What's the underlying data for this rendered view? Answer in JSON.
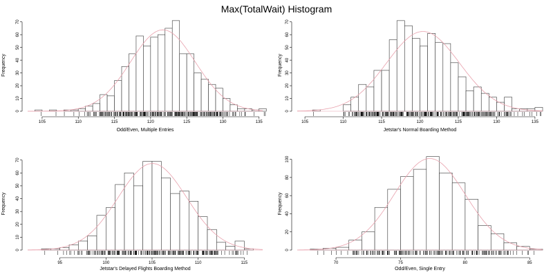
{
  "title": "Max(TotalWait) Histogram",
  "chart_data": [
    {
      "type": "bar",
      "subtype": "histogram",
      "xlabel": "Odd/Even, Multiple Entries",
      "ylabel": "Frequency",
      "xticks": [
        105,
        110,
        115,
        120,
        125,
        130,
        135
      ],
      "yticks": [
        0,
        10,
        20,
        30,
        40,
        50,
        60,
        70
      ],
      "xlim": [
        103,
        135.5
      ],
      "ylim": [
        0,
        72
      ],
      "bins_start": 104,
      "bin_width": 1,
      "values": [
        1,
        0,
        1,
        0,
        1,
        1,
        2,
        4,
        6,
        13,
        12,
        24,
        35,
        45,
        59,
        51,
        58,
        60,
        65,
        71,
        45,
        45,
        30,
        25,
        21,
        18,
        10,
        5,
        2,
        2,
        1,
        2
      ],
      "density_curve": "smoothed normal fit, pink",
      "rug": "data points marked along x-axis"
    },
    {
      "type": "bar",
      "subtype": "histogram",
      "xlabel": "Jetstar's Normal Boarding Method",
      "ylabel": "Frequency",
      "xticks": [
        105,
        110,
        115,
        120,
        125,
        130,
        135
      ],
      "yticks": [
        0,
        10,
        20,
        30,
        40,
        50,
        60,
        70
      ],
      "xlim": [
        104,
        136
      ],
      "ylim": [
        0,
        72
      ],
      "bins_start": 106,
      "bin_width": 1,
      "values": [
        1,
        0,
        0,
        0,
        5,
        11,
        21,
        19,
        32,
        32,
        56,
        71,
        67,
        57,
        51,
        61,
        54,
        53,
        38,
        27,
        16,
        19,
        14,
        11,
        7,
        11,
        2,
        2,
        2,
        3
      ],
      "density_curve": "smoothed normal fit, pink",
      "rug": "data points marked along x-axis"
    },
    {
      "type": "bar",
      "subtype": "histogram",
      "xlabel": "Jetstar's Delayed Flights Boarding Method",
      "ylabel": "Frequency",
      "xticks": [
        95,
        100,
        105,
        110,
        115
      ],
      "yticks": [
        0,
        10,
        20,
        30,
        40,
        50,
        60,
        70
      ],
      "xlim": [
        91.5,
        117
      ],
      "ylim": [
        0,
        72
      ],
      "bins_start": 93,
      "bin_width": 1,
      "values": [
        1,
        1,
        2,
        4,
        7,
        11,
        27,
        33,
        51,
        60,
        50,
        69,
        69,
        56,
        44,
        46,
        38,
        26,
        16,
        6,
        3,
        7,
        1
      ],
      "density_curve": "smoothed normal fit, pink",
      "rug": "data points marked along x-axis"
    },
    {
      "type": "bar",
      "subtype": "histogram",
      "xlabel": "Odd/Even, Single Entry",
      "ylabel": "Frequency",
      "xticks": [
        70,
        75,
        80,
        85
      ],
      "yticks": [
        0,
        20,
        40,
        60,
        80,
        100
      ],
      "xlim": [
        67,
        86
      ],
      "ylim": [
        0,
        102
      ],
      "bins_start": 68,
      "bin_width": 1,
      "values": [
        1,
        2,
        3,
        11,
        20,
        47,
        67,
        81,
        89,
        103,
        85,
        74,
        56,
        27,
        18,
        8,
        4,
        1
      ],
      "density_curve": "smoothed normal fit, pink",
      "rug": "data points marked along x-axis"
    }
  ],
  "colors": {
    "bar_fill": "#ffffff",
    "bar_stroke": "#333333",
    "density": "#e8a0ac",
    "axis": "#000000"
  }
}
